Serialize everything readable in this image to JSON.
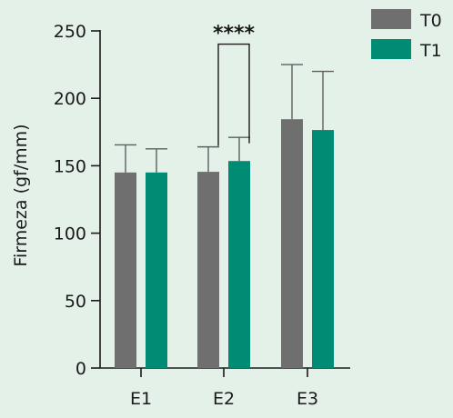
{
  "chart_data": {
    "type": "bar",
    "ylabel": "Firmeza (gf/mm)",
    "xlabel": "",
    "ylim": [
      0,
      250
    ],
    "yticks": [
      0,
      50,
      100,
      150,
      200,
      250
    ],
    "categories": [
      "E1",
      "E2",
      "E3"
    ],
    "series": [
      {
        "name": "T0",
        "color": "#706f6f",
        "values": [
          145,
          145.5,
          184.5
        ],
        "errors": [
          20.5,
          18.5,
          40.5
        ]
      },
      {
        "name": "T1",
        "color": "#008b74",
        "values": [
          145,
          153.5,
          176.5
        ],
        "errors": [
          17.5,
          17.5,
          43.5
        ]
      }
    ],
    "legend": "top-right",
    "grid": false,
    "annotations": [
      {
        "text": "****",
        "category": "E2",
        "between": [
          "T0",
          "T1"
        ],
        "level": 255
      }
    ]
  }
}
